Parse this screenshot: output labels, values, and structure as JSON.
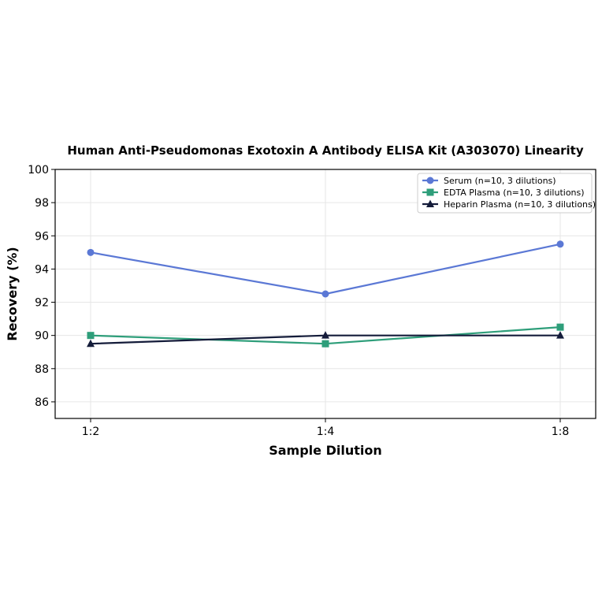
{
  "chart_data": {
    "type": "line",
    "title": "Human Anti-Pseudomonas Exotoxin A Antibody ELISA Kit (A303070) Linearity",
    "xlabel": "Sample Dilution",
    "ylabel": "Recovery (%)",
    "categories": [
      "1:2",
      "1:4",
      "1:8"
    ],
    "ylim": [
      85,
      100
    ],
    "yticks": [
      86,
      88,
      90,
      92,
      94,
      96,
      98,
      100
    ],
    "grid": true,
    "legend_position": "top-right",
    "series": [
      {
        "name": "Serum (n=10, 3 dilutions)",
        "values": [
          95.0,
          92.5,
          95.5
        ],
        "color": "#5b78d5",
        "marker": "circle"
      },
      {
        "name": "EDTA Plasma (n=10, 3 dilutions)",
        "values": [
          90.0,
          89.5,
          90.5
        ],
        "color": "#2e9e7a",
        "marker": "square"
      },
      {
        "name": "Heparin Plasma (n=10, 3 dilutions)",
        "values": [
          89.5,
          90.0,
          90.0
        ],
        "color": "#141c3a",
        "marker": "triangle"
      }
    ]
  }
}
